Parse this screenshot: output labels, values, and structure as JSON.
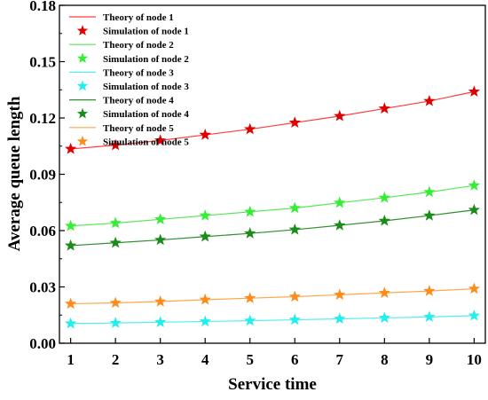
{
  "chart_data": {
    "type": "line",
    "title": "",
    "xlabel": "Service time",
    "ylabel": "Average queue length",
    "xlim": [
      0.75,
      10.25
    ],
    "ylim": [
      0.0,
      0.18
    ],
    "x_ticks": [
      1,
      2,
      3,
      4,
      5,
      6,
      7,
      8,
      9,
      10
    ],
    "y_ticks": [
      0.0,
      0.03,
      0.06,
      0.09,
      0.12,
      0.15,
      0.18
    ],
    "y_tick_labels": [
      "0.00",
      "0.03",
      "0.06",
      "0.09",
      "0.12",
      "0.15",
      "0.18"
    ],
    "x_tick_labels": [
      "1",
      "2",
      "3",
      "4",
      "5",
      "6",
      "7",
      "8",
      "9",
      "10"
    ],
    "grid": false,
    "legend_position": "top-left",
    "x": [
      1,
      2,
      3,
      4,
      5,
      6,
      7,
      8,
      9,
      10
    ],
    "series": [
      {
        "name": "Theory of node 1",
        "kind": "line",
        "color": "#ff3b3b",
        "values": [
          0.1035,
          0.1055,
          0.108,
          0.111,
          0.114,
          0.1175,
          0.121,
          0.125,
          0.129,
          0.134
        ]
      },
      {
        "name": "Simulation of node 1",
        "kind": "marker",
        "color": "#e00000",
        "values": [
          0.1035,
          0.1055,
          0.108,
          0.111,
          0.114,
          0.1175,
          0.121,
          0.125,
          0.129,
          0.134
        ]
      },
      {
        "name": "Theory of node 2",
        "kind": "line",
        "color": "#55e855",
        "values": [
          0.0625,
          0.064,
          0.066,
          0.068,
          0.07,
          0.072,
          0.0748,
          0.0775,
          0.0805,
          0.084
        ]
      },
      {
        "name": "Simulation of node 2",
        "kind": "marker",
        "color": "#33ee33",
        "values": [
          0.0625,
          0.064,
          0.066,
          0.068,
          0.07,
          0.072,
          0.0748,
          0.0775,
          0.0805,
          0.084
        ]
      },
      {
        "name": "Theory of node 3",
        "kind": "line",
        "color": "#55eeee",
        "values": [
          0.0105,
          0.0108,
          0.0112,
          0.0116,
          0.012,
          0.0125,
          0.013,
          0.0135,
          0.014,
          0.0147
        ]
      },
      {
        "name": "Simulation of node 3",
        "kind": "marker",
        "color": "#22eeee",
        "values": [
          0.0105,
          0.0108,
          0.0112,
          0.0116,
          0.012,
          0.0125,
          0.013,
          0.0135,
          0.014,
          0.0147
        ]
      },
      {
        "name": "Theory of node 4",
        "kind": "line",
        "color": "#2f8f2f",
        "values": [
          0.052,
          0.0535,
          0.055,
          0.0568,
          0.0585,
          0.0605,
          0.0628,
          0.0652,
          0.068,
          0.071
        ]
      },
      {
        "name": "Simulation of node 4",
        "kind": "marker",
        "color": "#1a8c1a",
        "values": [
          0.052,
          0.0535,
          0.055,
          0.0568,
          0.0585,
          0.0605,
          0.0628,
          0.0652,
          0.068,
          0.071
        ]
      },
      {
        "name": "Theory of node 5",
        "kind": "line",
        "color": "#ffa64d",
        "values": [
          0.021,
          0.0215,
          0.0222,
          0.0232,
          0.024,
          0.0248,
          0.0258,
          0.0268,
          0.0278,
          0.029
        ]
      },
      {
        "name": "Simulation of node 5",
        "kind": "marker",
        "color": "#ff8c1a",
        "values": [
          0.021,
          0.0215,
          0.0222,
          0.0232,
          0.024,
          0.0248,
          0.0258,
          0.0268,
          0.0278,
          0.029
        ]
      }
    ]
  }
}
